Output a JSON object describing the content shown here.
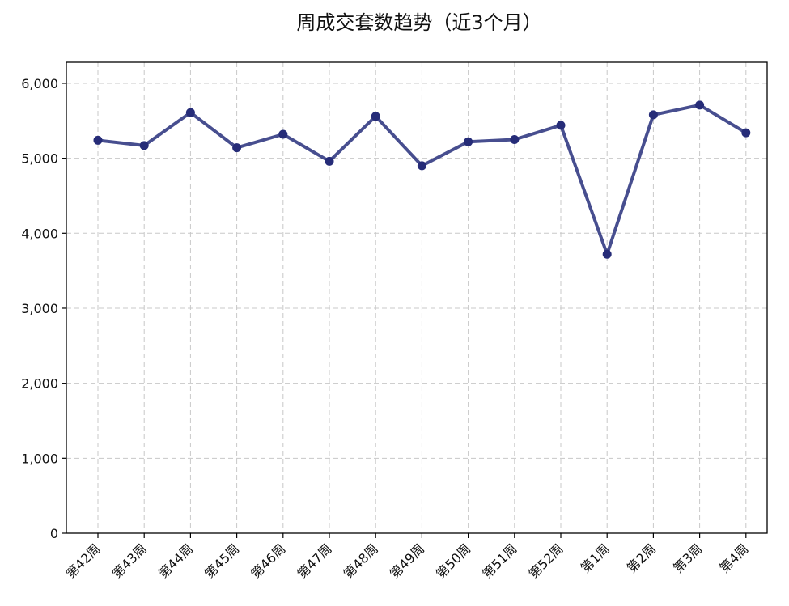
{
  "chart_data": {
    "type": "line",
    "title": "周成交套数趋势（近3个月）",
    "xlabel": "",
    "ylabel": "",
    "categories": [
      "第42周",
      "第43周",
      "第44周",
      "第45周",
      "第46周",
      "第47周",
      "第48周",
      "第49周",
      "第50周",
      "第51周",
      "第52周",
      "第1周",
      "第2周",
      "第3周",
      "第4周"
    ],
    "series": [
      {
        "values": [
          5240,
          5170,
          5610,
          5140,
          5320,
          4960,
          5560,
          4900,
          5220,
          5250,
          5440,
          3720,
          5580,
          5710,
          5340
        ]
      }
    ],
    "ylim": [
      0,
      6280
    ],
    "yticks": [
      0,
      1000,
      2000,
      3000,
      4000,
      5000,
      6000
    ],
    "ytick_labels": [
      "0",
      "1,000",
      "2,000",
      "3,000",
      "4,000",
      "5,000",
      "6,000"
    ],
    "grid": true,
    "line_color": "#2e3580",
    "marker_color": "#262c78"
  }
}
